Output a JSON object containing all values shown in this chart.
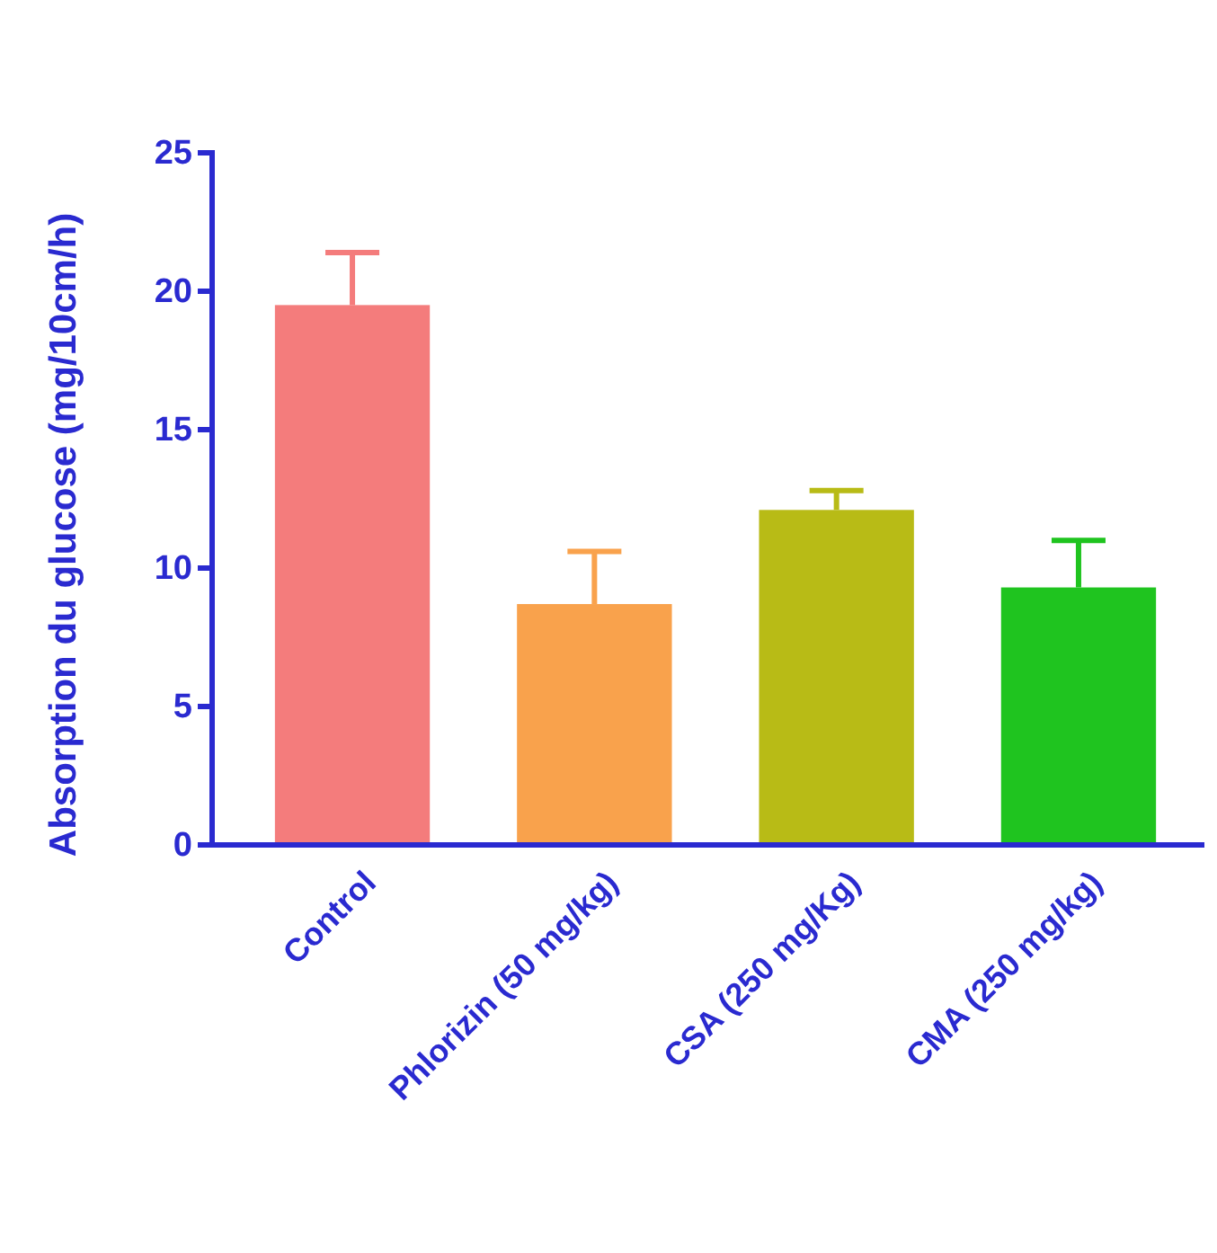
{
  "chart_data": {
    "type": "bar",
    "ylabel": "Absorption du glucose (mg/10cm/h)",
    "categories": [
      "Control",
      "Phlorizin (50 mg/kg)",
      "CSA (250 mg/Kg)",
      "CMA (250 mg/kg)"
    ],
    "values": [
      19.5,
      8.7,
      12.1,
      9.3
    ],
    "colors": [
      "#f47c7c",
      "#f9a24c",
      "#b8bb16",
      "#1fc41f"
    ],
    "errors": [
      [
        19.5,
        21.4
      ],
      [
        8.7,
        10.6
      ],
      [
        12.1,
        12.8
      ],
      [
        9.3,
        11.0
      ]
    ],
    "ylim": [
      0,
      25
    ],
    "yticks": [
      0,
      5,
      10,
      15,
      20,
      25
    ]
  }
}
